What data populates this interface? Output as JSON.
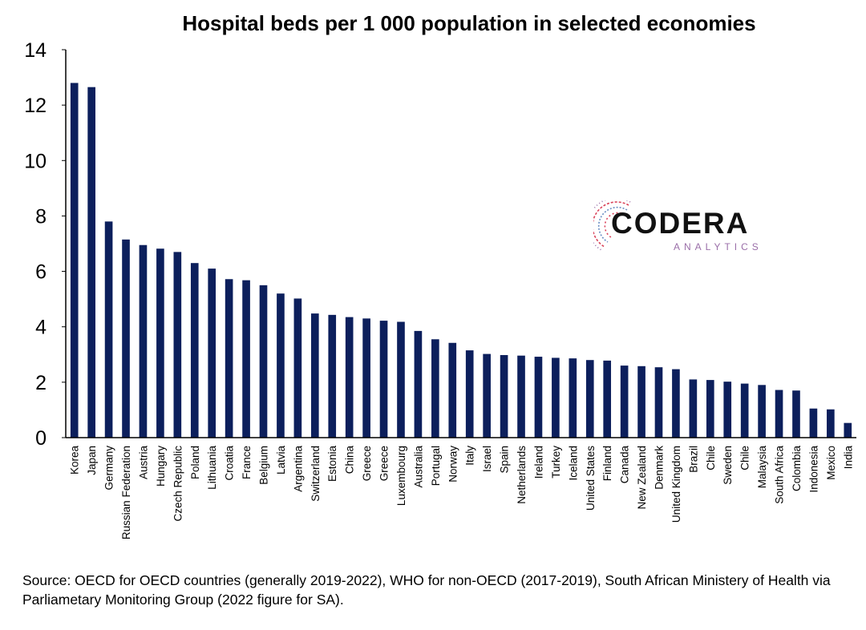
{
  "chart_data": {
    "type": "bar",
    "title": "Hospital beds per 1 000 population in selected economies",
    "categories": [
      "Korea",
      "Japan",
      "Germany",
      "Russian Federation",
      "Austria",
      "Hungary",
      "Czech Republic",
      "Poland",
      "Lithuania",
      "Croatia",
      "France",
      "Belgium",
      "Latvia",
      "Argentina",
      "Switzerland",
      "Estonia",
      "China",
      "Greece",
      "Greece",
      "Luxembourg",
      "Australia",
      "Portugal",
      "Norway",
      "Italy",
      "Israel",
      "Spain",
      "Netherlands",
      "Ireland",
      "Turkey",
      "Iceland",
      "United States",
      "Finland",
      "Canada",
      "New Zealand",
      "Denmark",
      "United Kingdom",
      "Brazil",
      "Chile",
      "Sweden",
      "Chile",
      "Malaysia",
      "South Africa",
      "Colombia",
      "Indonesia",
      "Mexico",
      "India"
    ],
    "values": [
      12.8,
      12.65,
      7.8,
      7.15,
      6.95,
      6.82,
      6.7,
      6.3,
      6.1,
      5.72,
      5.68,
      5.5,
      5.2,
      5.02,
      4.48,
      4.43,
      4.35,
      4.3,
      4.22,
      4.18,
      3.85,
      3.55,
      3.42,
      3.15,
      3.02,
      2.98,
      2.96,
      2.92,
      2.88,
      2.86,
      2.8,
      2.78,
      2.6,
      2.58,
      2.54,
      2.47,
      2.1,
      2.08,
      2.02,
      1.95,
      1.9,
      1.72,
      1.7,
      1.05,
      1.02,
      0.53
    ],
    "ylim": [
      0,
      14
    ],
    "yticks": [
      0,
      2,
      4,
      6,
      8,
      10,
      12,
      14
    ],
    "xlabel": "",
    "ylabel": "",
    "grid": false,
    "bar_color": "#0c1f5c"
  },
  "source_note": "Source: OECD for OECD countries (generally 2019-2022), WHO for non-OECD (2017-2019), South African Ministery of Health via Parliametary Monitoring Group (2022 figure for SA).",
  "logo": {
    "wordmark": "CODERA",
    "tagline": "ANALYTICS",
    "colors": [
      "#d9425a",
      "#6b8ec4"
    ]
  }
}
